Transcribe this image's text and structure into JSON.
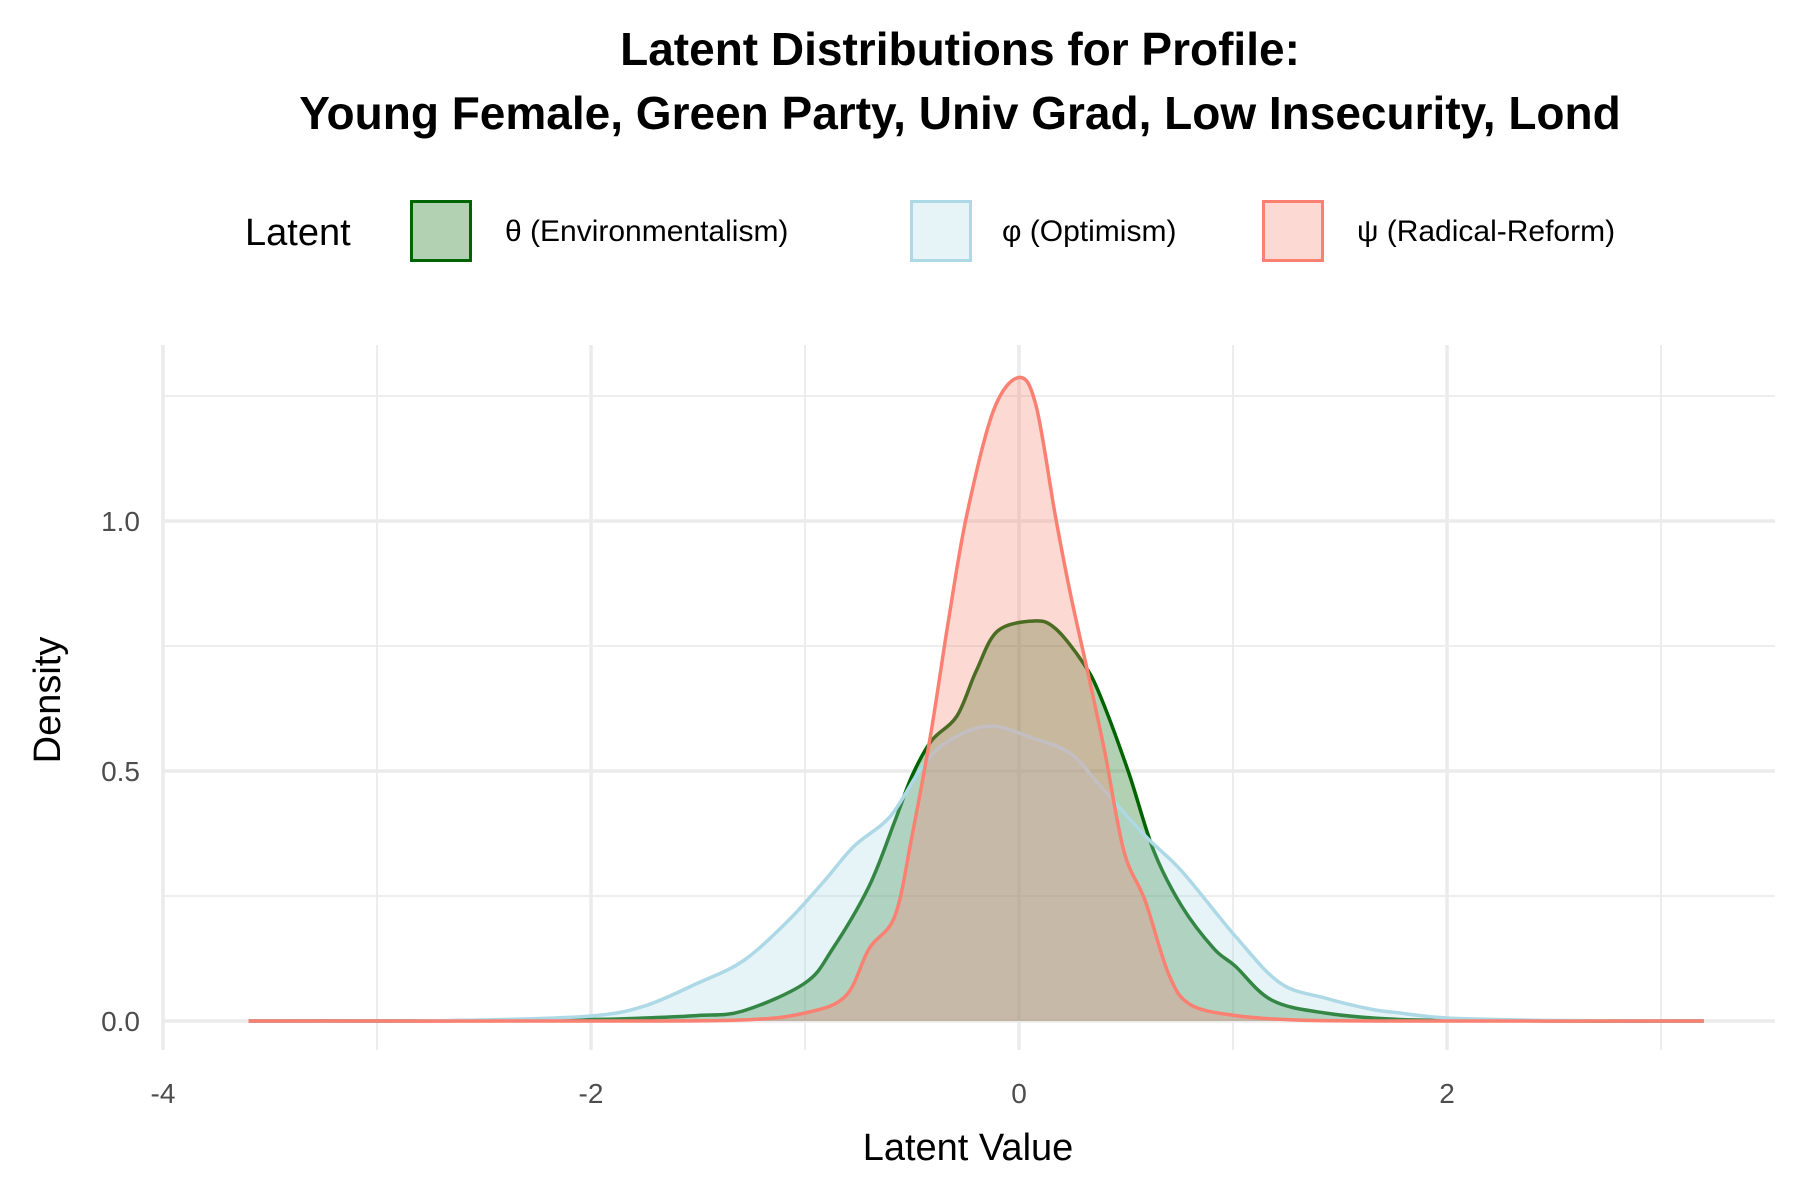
{
  "chart_data": {
    "type": "area",
    "title": [
      "Latent Distributions for Profile:",
      "Young Female, Green Party, Univ Grad, Low Insecurity, Lond"
    ],
    "xlabel": "Latent Value",
    "ylabel": "Density",
    "xlim": [
      -4,
      3.5
    ],
    "ylim": [
      0,
      1.35
    ],
    "x_ticks": [
      -4,
      -2,
      0,
      2
    ],
    "x_tick_labels": [
      "-4",
      "-2",
      "0",
      "2"
    ],
    "y_ticks": [
      0,
      0.5,
      1.0
    ],
    "y_tick_labels": [
      "0.0",
      "0.5",
      "1.0"
    ],
    "grid": true,
    "legend": {
      "title": "Latent",
      "placement": "top"
    },
    "series": [
      {
        "name": "θ (Environmentalism)",
        "stroke": "#006400",
        "fill": "#006400",
        "fill_alpha": 0.3,
        "x": [
          -3.6,
          -3.0,
          -2.5,
          -2.0,
          -1.75,
          -1.5,
          -1.29,
          -1.0,
          -0.87,
          -0.7,
          -0.58,
          -0.5,
          -0.41,
          -0.29,
          -0.2,
          -0.1,
          0.07,
          0.17,
          0.3,
          0.38,
          0.51,
          0.63,
          0.76,
          0.91,
          1.01,
          1.18,
          1.43,
          1.78,
          2.2,
          2.7,
          3.2
        ],
        "y": [
          0,
          0,
          0.001,
          0.003,
          0.006,
          0.011,
          0.02,
          0.076,
          0.145,
          0.27,
          0.4,
          0.49,
          0.56,
          0.61,
          0.7,
          0.78,
          0.8,
          0.785,
          0.716,
          0.65,
          0.5,
          0.34,
          0.23,
          0.145,
          0.11,
          0.042,
          0.016,
          0.003,
          0.001,
          0,
          0
        ]
      },
      {
        "name": "φ (Optimism)",
        "stroke": "#ADD8E6",
        "fill": "#ADD8E6",
        "fill_alpha": 0.3,
        "x": [
          -3.6,
          -3.0,
          -2.5,
          -2.0,
          -1.75,
          -1.5,
          -1.29,
          -1.08,
          -0.91,
          -0.77,
          -0.6,
          -0.45,
          -0.33,
          -0.14,
          0.07,
          0.24,
          0.38,
          0.59,
          0.76,
          1.01,
          1.22,
          1.43,
          1.64,
          1.78,
          2.0,
          2.5,
          3.2
        ],
        "y": [
          0,
          0,
          0.002,
          0.01,
          0.03,
          0.076,
          0.12,
          0.2,
          0.28,
          0.35,
          0.41,
          0.51,
          0.56,
          0.59,
          0.565,
          0.535,
          0.47,
          0.37,
          0.3,
          0.17,
          0.076,
          0.046,
          0.024,
          0.016,
          0.006,
          0.001,
          0
        ]
      },
      {
        "name": "ψ (Radical-Reform)",
        "stroke": "#FA8072",
        "fill": "#FA8072",
        "fill_alpha": 0.3,
        "x": [
          -3.6,
          -2.0,
          -1.3,
          -1.0,
          -0.81,
          -0.7,
          -0.58,
          -0.5,
          -0.41,
          -0.33,
          -0.245,
          -0.12,
          0,
          0.08,
          0.17,
          0.24,
          0.32,
          0.4,
          0.49,
          0.59,
          0.7,
          0.8,
          1.01,
          1.3,
          1.8,
          3.2
        ],
        "y": [
          0,
          0,
          0.002,
          0.016,
          0.05,
          0.145,
          0.21,
          0.37,
          0.58,
          0.8,
          1.01,
          1.22,
          1.287,
          1.23,
          1.01,
          0.855,
          0.7,
          0.54,
          0.34,
          0.24,
          0.093,
          0.033,
          0.011,
          0.002,
          0,
          0
        ]
      }
    ]
  }
}
